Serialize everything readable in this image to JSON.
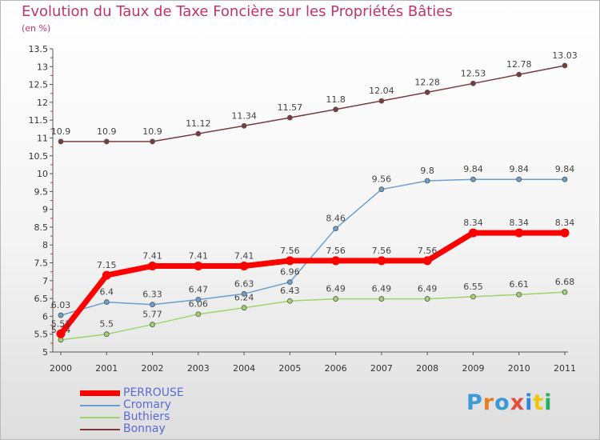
{
  "title": "Evolution du Taux de Taxe Foncière sur les Propriétés Bâties",
  "unit_label": "(en %)",
  "logo_text": "Proxiti",
  "chart_data": {
    "type": "line",
    "categories": [
      "2000",
      "2001",
      "2002",
      "2003",
      "2004",
      "2005",
      "2006",
      "2007",
      "2008",
      "2009",
      "2010",
      "2011"
    ],
    "ylim": [
      5,
      13.5
    ],
    "yticks": [
      "5",
      "5.5",
      "6",
      "6.5",
      "7",
      "7.5",
      "8",
      "8.5",
      "9",
      "9.5",
      "10",
      "10.5",
      "11",
      "11.5",
      "12",
      "12.5",
      "13",
      "13.5"
    ],
    "series": [
      {
        "name": "PERROUSE",
        "color": "#ff0000",
        "values": [
          5.51,
          7.15,
          7.41,
          7.41,
          7.41,
          7.56,
          7.56,
          7.56,
          7.56,
          8.34,
          8.34,
          8.34
        ],
        "labels": [
          "5.51",
          "7.15",
          "7.41",
          "7.41",
          "7.41",
          "7.56",
          "7.56",
          "7.56",
          "7.56",
          "8.34",
          "8.34",
          "8.34"
        ]
      },
      {
        "name": "Cromary",
        "color": "#6a9fd0",
        "values": [
          6.03,
          6.4,
          6.33,
          6.47,
          6.63,
          6.96,
          8.46,
          9.56,
          9.8,
          9.84,
          9.84,
          9.84
        ],
        "labels": [
          "6.03",
          "6.4",
          "6.33",
          "6.47",
          "6.63",
          "6.96",
          "8.46",
          "9.56",
          "9.8",
          "9.84",
          "9.84",
          "9.84"
        ]
      },
      {
        "name": "Buthiers",
        "color": "#9fd36b",
        "values": [
          5.34,
          5.5,
          5.77,
          6.06,
          6.24,
          6.43,
          6.49,
          6.49,
          6.49,
          6.55,
          6.61,
          6.68
        ],
        "labels": [
          "5.34",
          "5.5",
          "5.77",
          "6.06",
          "6.24",
          "6.43",
          "6.49",
          "6.49",
          "6.49",
          "6.55",
          "6.61",
          "6.68"
        ]
      },
      {
        "name": "Bonnay",
        "color": "#7a3b3b",
        "values": [
          10.9,
          10.9,
          10.9,
          11.12,
          11.34,
          11.57,
          11.8,
          12.04,
          12.28,
          12.53,
          12.78,
          13.03
        ],
        "labels": [
          "10.9",
          "10.9",
          "10.9",
          "11.12",
          "11.34",
          "11.57",
          "11.8",
          "12.04",
          "12.28",
          "12.53",
          "12.78",
          "13.03"
        ]
      }
    ]
  }
}
